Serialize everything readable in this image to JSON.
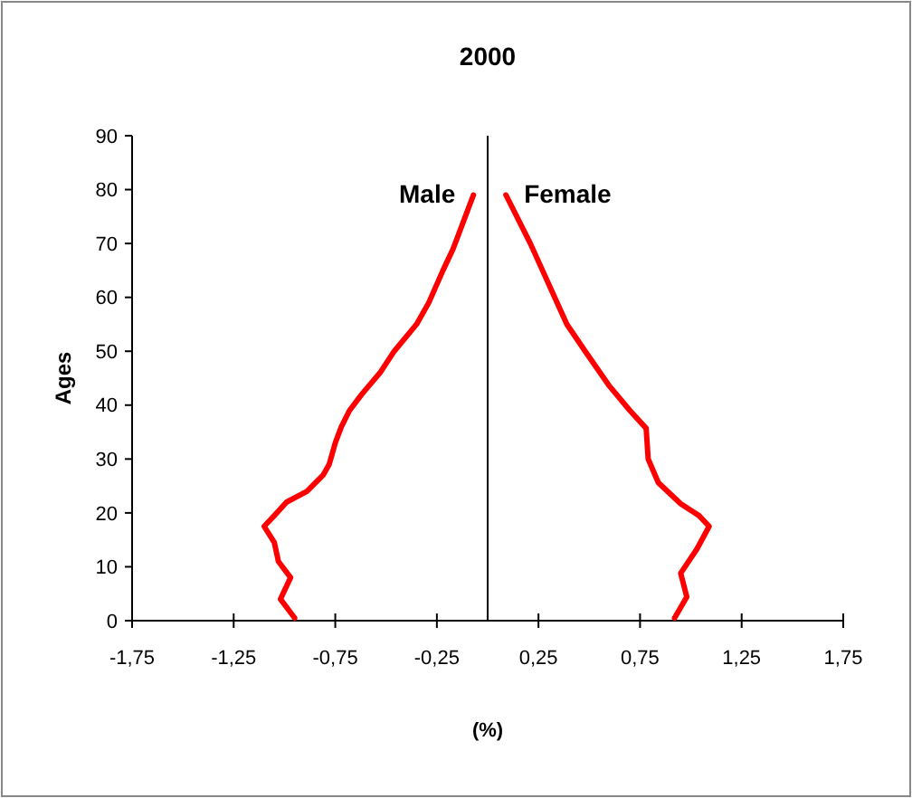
{
  "chart_data": {
    "type": "line",
    "title": "2000",
    "xlabel": "(%)",
    "ylabel": "Ages",
    "xlim": [
      -1.75,
      1.75
    ],
    "xticks": [
      {
        "value": -1.75,
        "label": "-1,75"
      },
      {
        "value": -1.25,
        "label": "-1,25"
      },
      {
        "value": -0.75,
        "label": "-0,75"
      },
      {
        "value": -0.25,
        "label": "-0,25"
      },
      {
        "value": 0.25,
        "label": "0,25"
      },
      {
        "value": 0.75,
        "label": "0,75"
      },
      {
        "value": 1.25,
        "label": "1,25"
      },
      {
        "value": 1.75,
        "label": "1,75"
      }
    ],
    "ylim": [
      0,
      90
    ],
    "yticks": [
      0,
      10,
      20,
      30,
      40,
      50,
      60,
      70,
      80,
      90
    ],
    "grid": false,
    "legend": false,
    "marker": "none",
    "line_style": "solid",
    "ref_lines": [
      {
        "axis": "x",
        "value": 0,
        "color": "#000000"
      }
    ],
    "series": [
      {
        "name": "Male",
        "color": "#ff0000",
        "x": [
          -0.95,
          -1.02,
          -0.97,
          -1.03,
          -1.05,
          -1.1,
          -1.05,
          -0.99,
          -0.89,
          -0.81,
          -0.78,
          -0.75,
          -0.72,
          -0.68,
          -0.62,
          -0.53,
          -0.46,
          -0.35,
          -0.29,
          -0.22,
          -0.17,
          -0.13,
          -0.07
        ],
        "values": [
          0.5,
          4,
          8,
          11,
          14.5,
          17.5,
          19.5,
          22,
          24,
          27,
          29,
          33,
          36,
          39,
          42,
          46,
          50,
          55,
          59,
          65,
          69,
          73,
          79
        ]
      },
      {
        "name": "Female",
        "color": "#ff0000",
        "x": [
          0.92,
          0.98,
          0.95,
          1.03,
          1.09,
          1.04,
          0.95,
          0.84,
          0.79,
          0.78,
          0.7,
          0.6,
          0.48,
          0.39,
          0.33,
          0.27,
          0.21,
          0.09
        ],
        "values": [
          0.5,
          4.4,
          8.8,
          13.3,
          17.5,
          19.5,
          21.7,
          25.6,
          30,
          35.7,
          39,
          43.5,
          50,
          55,
          60,
          65,
          70,
          79
        ]
      }
    ]
  }
}
